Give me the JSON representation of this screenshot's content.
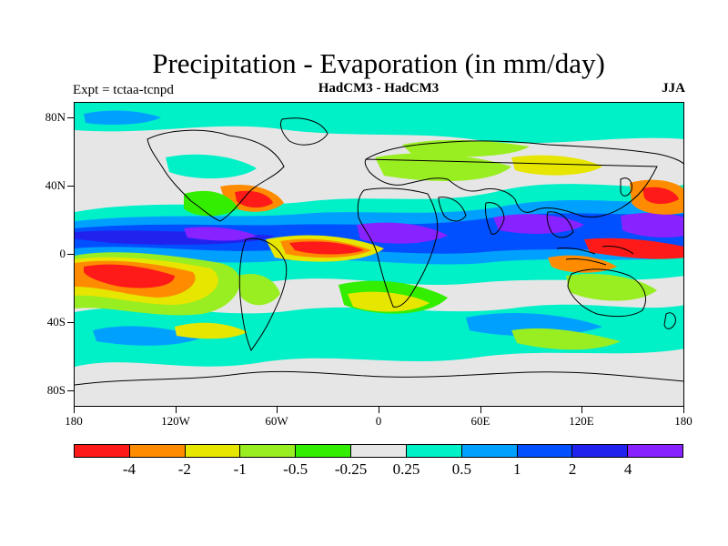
{
  "title": "Precipitation - Evaporation (in mm/day)",
  "subtitle_left": "Expt = tctaa-tcnpd",
  "subtitle_center": "HadCM3 - HadCM3",
  "subtitle_right": "JJA",
  "lat_labels": [
    "80N",
    "40N",
    "0",
    "40S",
    "80S"
  ],
  "lon_labels": [
    "180",
    "120W",
    "60W",
    "0",
    "60E",
    "120E",
    "180"
  ],
  "colorbar": {
    "colors": [
      "#ff1a1a",
      "#ff8c00",
      "#e6e600",
      "#99ee22",
      "#33ee00",
      "#e6e6e6",
      "#00f0c8",
      "#00a0ff",
      "#0050ff",
      "#2222ee",
      "#8822ff"
    ],
    "labels": [
      "-4",
      "-2",
      "-1",
      "-0.5",
      "-0.25",
      "0.25",
      "0.5",
      "1",
      "2",
      "4"
    ]
  },
  "map": {
    "background_value_color": "#e6e6e6",
    "coastline_color": "#000000"
  }
}
